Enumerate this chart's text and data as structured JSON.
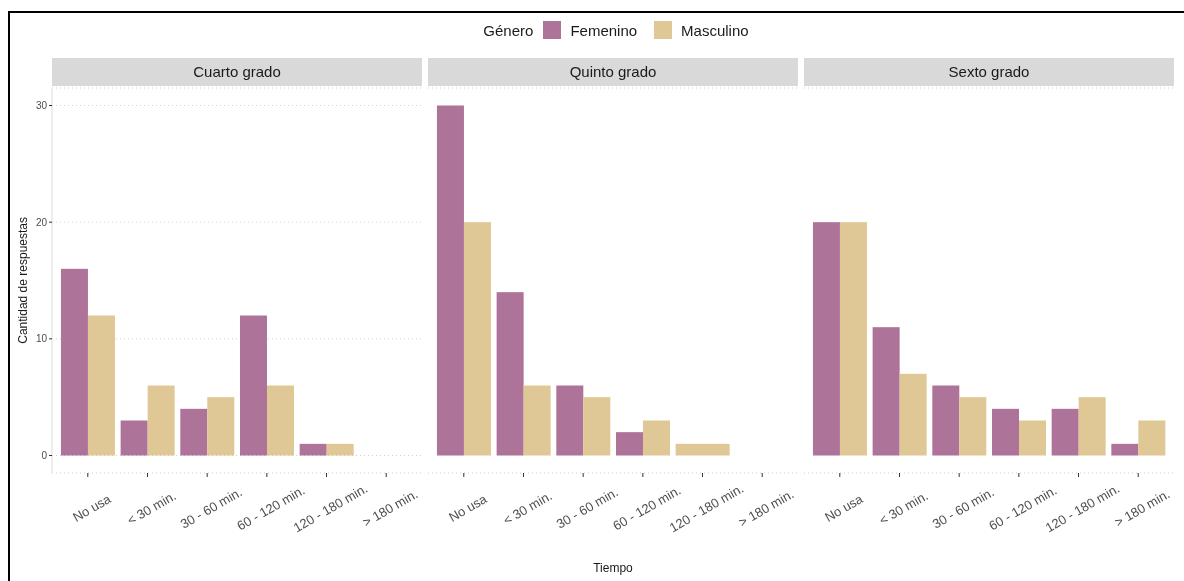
{
  "chart_data": [
    {
      "type": "bar",
      "title": "Cuarto grado",
      "ylabel": "Cantidad de respuestas",
      "categories": [
        "No usa",
        "< 30 min.",
        "30 - 60 min.",
        "60 - 120 min.",
        "120 - 180 min.",
        "> 180 min."
      ],
      "series": [
        {
          "color": "#ae7399",
          "values": [
            16,
            3,
            4,
            12,
            1,
            null
          ]
        },
        {
          "color": "#dfc895",
          "values": [
            12,
            6,
            5,
            6,
            1,
            null
          ]
        }
      ],
      "ylim": [
        -1.5,
        31.5
      ],
      "yticks": [
        0,
        10,
        20,
        30
      ],
      "grid": "y"
    },
    {
      "type": "bar",
      "title": "Quinto grado",
      "xlabel": "Tiempo",
      "legend_title": "Género",
      "legend": "top",
      "categories": [
        "No usa",
        "< 30 min.",
        "30 - 60 min.",
        "60 - 120 min.",
        "120 - 180 min.",
        "> 180 min."
      ],
      "series": [
        {
          "name": "Femenino",
          "color": "#ae7399",
          "values": [
            30,
            14,
            6,
            2,
            null,
            null
          ]
        },
        {
          "name": "Masculino",
          "color": "#dfc895",
          "values": [
            20,
            6,
            5,
            3,
            1,
            null
          ]
        }
      ],
      "ylim": [
        -1.5,
        31.5
      ],
      "yticks": [
        0,
        10,
        20,
        30
      ],
      "grid": "y",
      "tick_labels": "x"
    },
    {
      "type": "bar",
      "title": "Sexto grado",
      "categories": [
        "No usa",
        "< 30 min.",
        "30 - 60 min.",
        "60 - 120 min.",
        "120 - 180 min.",
        "> 180 min."
      ],
      "series": [
        {
          "color": "#ae7399",
          "values": [
            20,
            11,
            6,
            4,
            4,
            1
          ]
        },
        {
          "color": "#dfc895",
          "values": [
            20,
            7,
            5,
            3,
            5,
            3
          ]
        }
      ],
      "ylim": [
        -1.5,
        31.5
      ],
      "yticks": [
        0,
        10,
        20,
        30
      ],
      "grid": "y",
      "tick_labels": "x"
    }
  ]
}
